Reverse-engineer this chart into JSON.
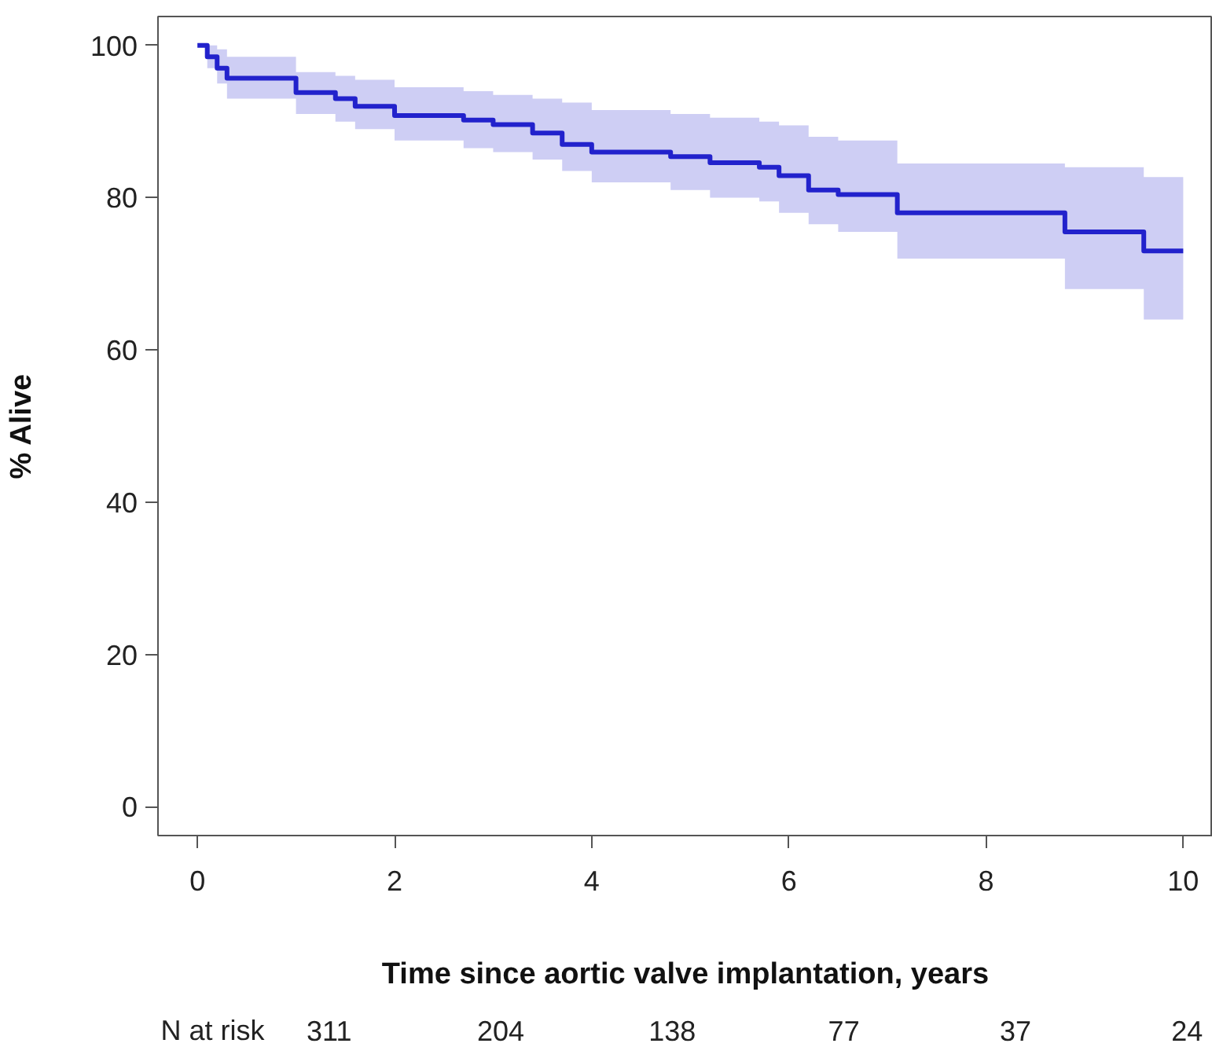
{
  "chart_data": {
    "type": "step",
    "xlabel": "Time since aortic valve implantation, years",
    "ylabel": "% Alive",
    "xlim": [
      -0.4,
      10.3
    ],
    "ylim": [
      -3.8,
      103.8
    ],
    "xticks": [
      0,
      2,
      4,
      6,
      8,
      10
    ],
    "yticks": [
      0,
      20,
      40,
      60,
      80,
      100
    ],
    "grid": false,
    "line_style": "solid",
    "series": [
      {
        "color": "#2222cc",
        "x": [
          0,
          0.1,
          0.2,
          0.3,
          1.0,
          1.4,
          1.6,
          2.0,
          2.7,
          3.0,
          3.4,
          3.7,
          4.0,
          4.8,
          5.2,
          5.7,
          5.9,
          6.2,
          6.5,
          7.1,
          8.8,
          9.6,
          10.0
        ],
        "values": [
          100,
          98.5,
          97,
          95.7,
          93.8,
          93,
          92,
          90.8,
          90.2,
          89.6,
          88.5,
          87,
          86,
          85.4,
          84.6,
          84,
          82.9,
          81,
          80.4,
          78,
          75.5,
          73,
          73
        ],
        "upper": [
          100,
          100,
          99.5,
          98.5,
          96.5,
          96,
          95.5,
          94.5,
          94,
          93.5,
          93,
          92.5,
          91.5,
          91,
          90.5,
          90,
          89.5,
          88,
          87.5,
          84.5,
          84,
          82.7,
          82.7
        ],
        "lower": [
          100,
          97,
          95,
          93,
          91,
          90,
          89,
          87.5,
          86.5,
          86,
          85,
          83.5,
          82,
          81,
          80,
          79.5,
          78,
          76.5,
          75.5,
          72,
          68,
          64,
          64
        ]
      }
    ],
    "annotations": [
      "N at risk",
      "311",
      "204",
      "138",
      "77",
      "37",
      "24"
    ]
  }
}
